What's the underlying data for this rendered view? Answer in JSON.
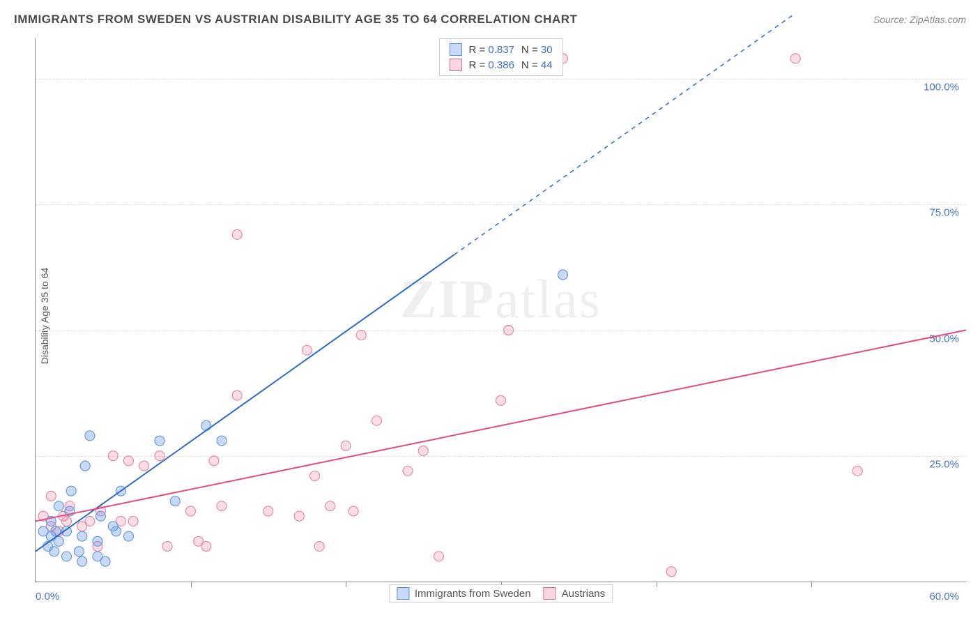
{
  "title": "IMMIGRANTS FROM SWEDEN VS AUSTRIAN DISABILITY AGE 35 TO 64 CORRELATION CHART",
  "source": "Source: ZipAtlas.com",
  "y_label": "Disability Age 35 to 64",
  "watermark": {
    "zip": "ZIP",
    "atlas": "atlas"
  },
  "chart": {
    "type": "scatter",
    "xlim": [
      0,
      60
    ],
    "ylim": [
      0,
      108
    ],
    "y_ticks": [
      25,
      50,
      75,
      100
    ],
    "y_tick_labels": [
      "25.0%",
      "50.0%",
      "75.0%",
      "100.0%"
    ],
    "x_ticks": [
      10,
      20,
      30,
      40,
      50
    ],
    "x_start_label": "0.0%",
    "x_end_label": "60.0%",
    "background_color": "#ffffff",
    "grid_color": "#dddddd",
    "axis_color": "#888888",
    "tick_label_color": "#4472c4",
    "marker_radius": 7,
    "marker_stroke_width": 1.2,
    "line_width": 2
  },
  "series": {
    "blue": {
      "label": "Immigrants from Sweden",
      "R": "0.837",
      "N": "30",
      "fill": "rgba(100,149,237,0.35)",
      "stroke": "#6a9bd8",
      "line_color": "#2e6bc7",
      "trend": {
        "x1": 0,
        "y1": 6,
        "x2": 27,
        "y2": 65,
        "dash_x2": 49,
        "dash_y2": 113
      },
      "points": [
        [
          0.5,
          10
        ],
        [
          0.8,
          7
        ],
        [
          1,
          9
        ],
        [
          1,
          12
        ],
        [
          1.2,
          6
        ],
        [
          1.3,
          10
        ],
        [
          1.5,
          8
        ],
        [
          1.5,
          15
        ],
        [
          2,
          5
        ],
        [
          2,
          10
        ],
        [
          2.2,
          14
        ],
        [
          2.3,
          18
        ],
        [
          2.8,
          6
        ],
        [
          3,
          4
        ],
        [
          3,
          9
        ],
        [
          3.2,
          23
        ],
        [
          3.5,
          29
        ],
        [
          4,
          5
        ],
        [
          4,
          8
        ],
        [
          4.2,
          13
        ],
        [
          4.5,
          4
        ],
        [
          5,
          11
        ],
        [
          5.2,
          10
        ],
        [
          5.5,
          18
        ],
        [
          6,
          9
        ],
        [
          8,
          28
        ],
        [
          9,
          16
        ],
        [
          11,
          31
        ],
        [
          12,
          28
        ],
        [
          34,
          61
        ]
      ]
    },
    "pink": {
      "label": "Austrians",
      "R": "0.386",
      "N": "44",
      "fill": "rgba(233,99,141,0.22)",
      "stroke": "#e58aa8",
      "line_color": "#e34d7a",
      "trend": {
        "x1": 0,
        "y1": 12,
        "x2": 60,
        "y2": 50
      },
      "points": [
        [
          0.5,
          13
        ],
        [
          1,
          11
        ],
        [
          1,
          17
        ],
        [
          1.5,
          10
        ],
        [
          1.8,
          13
        ],
        [
          2,
          12
        ],
        [
          2.2,
          15
        ],
        [
          3,
          11
        ],
        [
          3.5,
          12
        ],
        [
          4,
          7
        ],
        [
          4.2,
          14
        ],
        [
          5,
          25
        ],
        [
          5.5,
          12
        ],
        [
          6,
          24
        ],
        [
          6.3,
          12
        ],
        [
          7,
          23
        ],
        [
          8,
          25
        ],
        [
          8.5,
          7
        ],
        [
          10,
          14
        ],
        [
          10.5,
          8
        ],
        [
          11,
          7
        ],
        [
          11.5,
          24
        ],
        [
          12,
          15
        ],
        [
          13,
          37
        ],
        [
          13,
          69
        ],
        [
          15,
          14
        ],
        [
          17,
          13
        ],
        [
          17.5,
          46
        ],
        [
          18,
          21
        ],
        [
          18.3,
          7
        ],
        [
          19,
          15
        ],
        [
          20,
          27
        ],
        [
          20.5,
          14
        ],
        [
          21,
          49
        ],
        [
          22,
          32
        ],
        [
          24,
          22
        ],
        [
          25,
          26
        ],
        [
          26,
          5
        ],
        [
          30,
          36
        ],
        [
          30.5,
          50
        ],
        [
          34,
          104
        ],
        [
          41,
          2
        ],
        [
          53,
          22
        ],
        [
          49,
          104
        ]
      ]
    }
  },
  "legend_top": {
    "r_prefix": "R =",
    "n_prefix": "N ="
  }
}
